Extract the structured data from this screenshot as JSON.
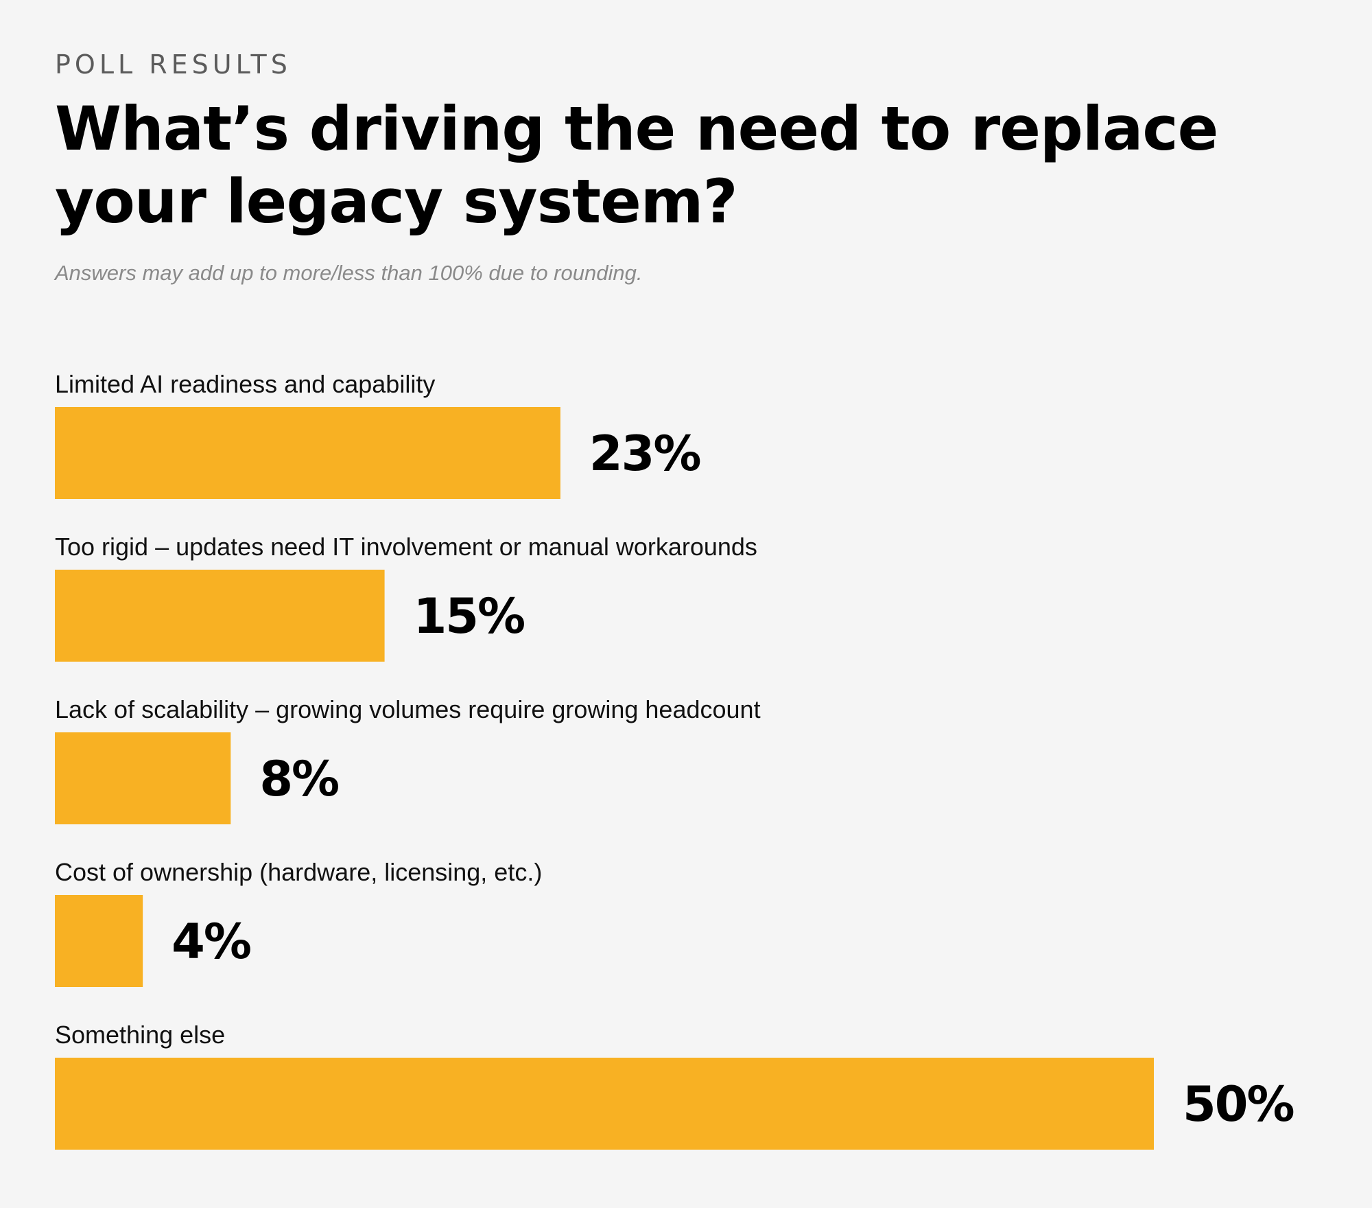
{
  "kicker": "POLL RESULTS",
  "chart_data": {
    "type": "bar",
    "orientation": "horizontal",
    "title": "What’s driving the need to replace your legacy system?",
    "subtitle": "Answers may add up to more/less than 100% due to rounding.",
    "categories": [
      "Limited AI readiness and capability",
      "Too rigid – updates need IT involvement or manual workarounds",
      "Lack of scalability – growing volumes require growing headcount",
      "Cost of ownership (hardware, licensing, etc.)",
      "Something else"
    ],
    "values": [
      23,
      15,
      8,
      4,
      50
    ],
    "value_labels": [
      "23%",
      "15%",
      "8%",
      "4%",
      "50%"
    ],
    "unit": "%",
    "xlim": [
      0,
      50
    ],
    "grid": false,
    "legend": "none",
    "bar_color": "#f8b123"
  }
}
